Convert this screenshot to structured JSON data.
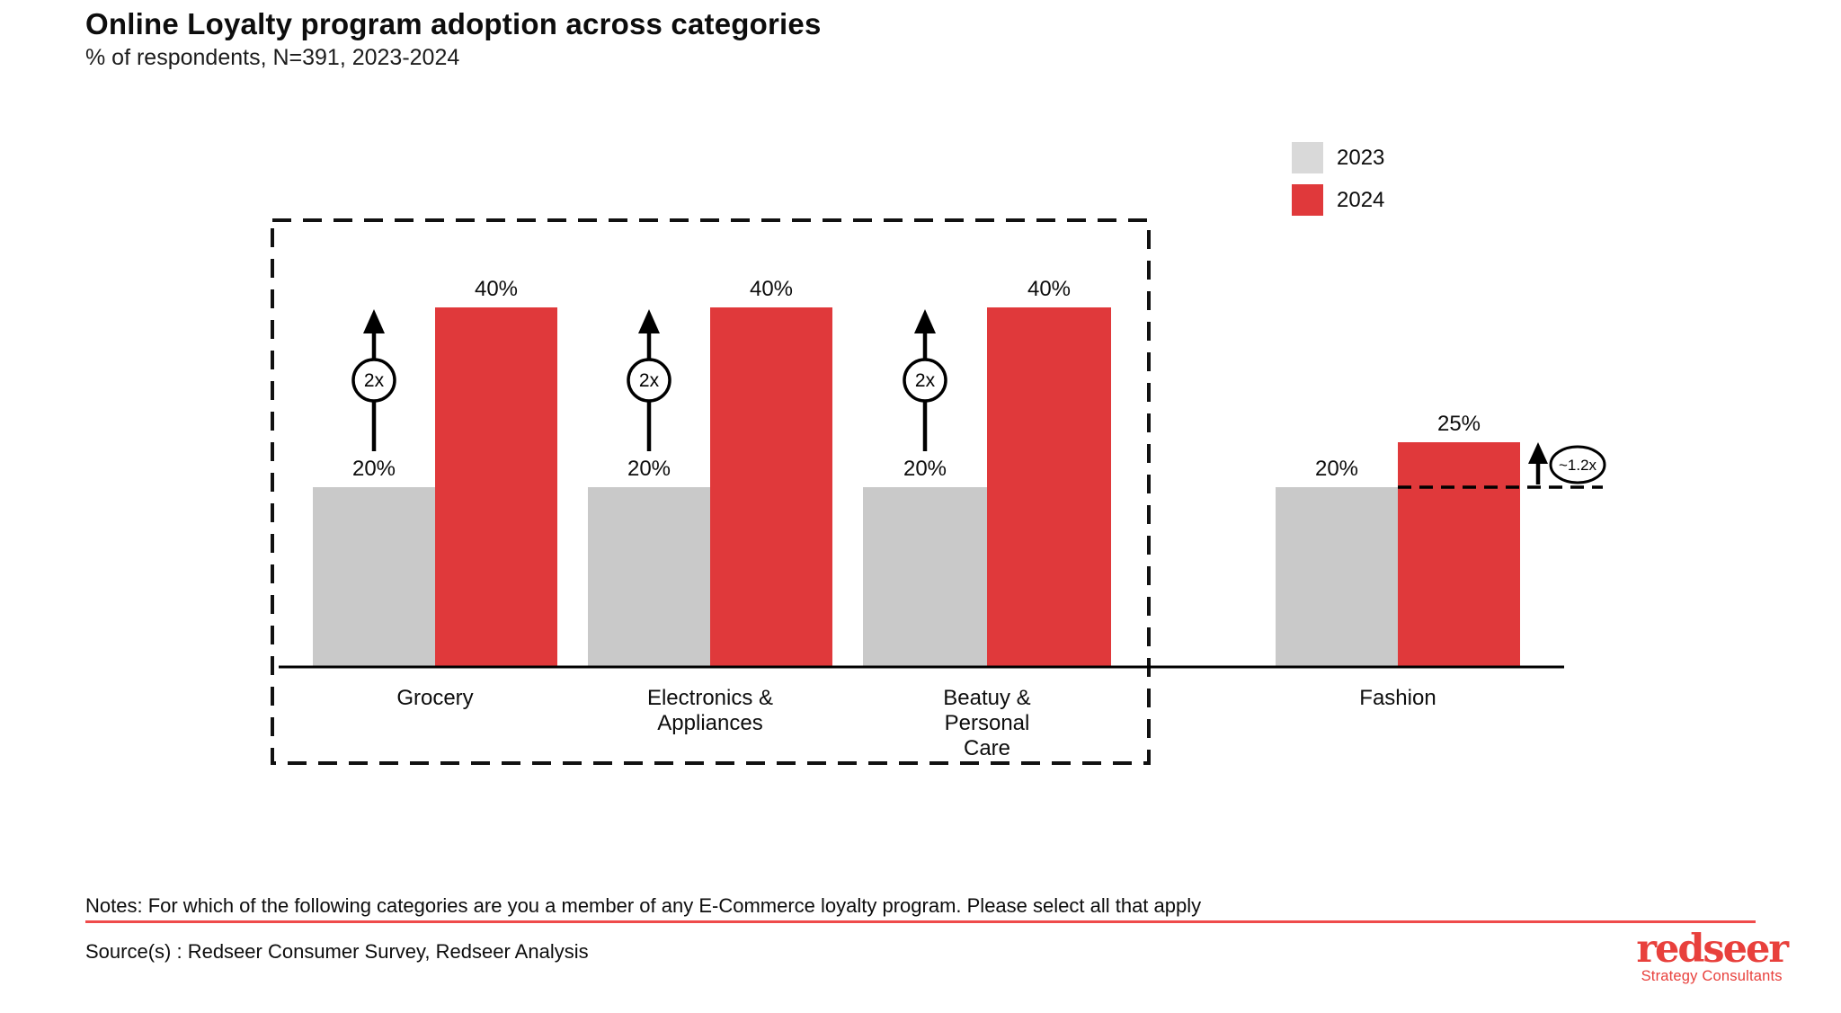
{
  "header": {
    "title": "Online Loyalty program adoption across categories",
    "subtitle": "% of respondents, N=391, 2023-2024"
  },
  "legend": {
    "items": [
      {
        "label": "2023",
        "color": "#d9d9d9"
      },
      {
        "label": "2024",
        "color": "#e0393b"
      }
    ]
  },
  "chart_data": {
    "type": "bar",
    "title": "Online Loyalty program adoption across categories",
    "unit": "% of respondents",
    "sample": "N=391",
    "period": "2023-2024",
    "categories": [
      "Grocery",
      "Electronics & Appliances",
      "Beatuy & Personal Care",
      "Fashion"
    ],
    "category_lines": [
      [
        "Grocery"
      ],
      [
        "Electronics &",
        "Appliances"
      ],
      [
        "Beatuy &",
        "Personal",
        "Care"
      ],
      [
        "Fashion"
      ]
    ],
    "series": [
      {
        "name": "2023",
        "color": "#c9c9c9",
        "values": [
          20,
          20,
          20,
          20
        ]
      },
      {
        "name": "2024",
        "color": "#e0393b",
        "values": [
          40,
          40,
          40,
          25
        ]
      }
    ],
    "value_suffix": "%",
    "annotations": {
      "multipliers": [
        "2x",
        "2x",
        "2x"
      ],
      "fashion_multiplier": "~1.2x"
    },
    "highlight_box_categories": [
      "Grocery",
      "Electronics & Appliances",
      "Beatuy & Personal Care"
    ],
    "ylim": [
      0,
      45
    ],
    "grid": false,
    "legend_position": "top-right"
  },
  "footer": {
    "notes": "Notes: For which of the following categories are you a member of any E-Commerce loyalty program. Please select all that apply",
    "source": "Source(s) : Redseer Consumer Survey, Redseer Analysis",
    "divider_color": "#ef4b4b"
  },
  "logo": {
    "wordmark": "redseer",
    "tagline": "Strategy Consultants",
    "color": "#e8403c"
  }
}
